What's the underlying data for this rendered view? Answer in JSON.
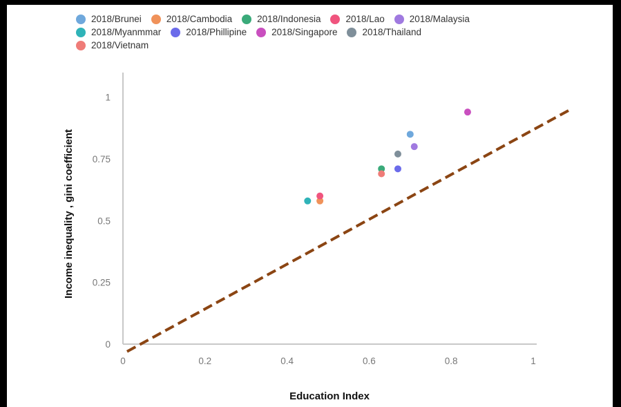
{
  "chart_data": {
    "type": "scatter",
    "title": "",
    "xlabel": "Education Index",
    "ylabel": "Income inequality , gini coefficient",
    "xlim": [
      0,
      1
    ],
    "ylim": [
      0,
      1.1
    ],
    "x_ticks": [
      0,
      0.2,
      0.4,
      0.6,
      0.8,
      1
    ],
    "x_tick_labels": [
      "0",
      "0.2",
      "0.4",
      "0.6",
      "0.8",
      "1"
    ],
    "y_ticks": [
      0,
      0.25,
      0.5,
      0.75,
      1
    ],
    "y_tick_labels": [
      "0",
      "0.25",
      "0.5",
      "0.75",
      "1"
    ],
    "grid": false,
    "legend_position": "top-left",
    "series": [
      {
        "name": "2018/Brunei",
        "color": "#6fa8dc",
        "x": 0.7,
        "y": 0.85
      },
      {
        "name": "2018/Cambodia",
        "color": "#f0925a",
        "x": 0.48,
        "y": 0.58
      },
      {
        "name": "2018/Indonesia",
        "color": "#3aaa7a",
        "x": 0.63,
        "y": 0.71
      },
      {
        "name": "2018/Lao",
        "color": "#f0547e",
        "x": 0.48,
        "y": 0.6
      },
      {
        "name": "2018/Malaysia",
        "color": "#a07ae0",
        "x": 0.71,
        "y": 0.8
      },
      {
        "name": "2018/Myanmmar",
        "color": "#2fb3b8",
        "x": 0.45,
        "y": 0.58
      },
      {
        "name": "2018/Phillipine",
        "color": "#6b6bea",
        "x": 0.67,
        "y": 0.71
      },
      {
        "name": "2018/Singapore",
        "color": "#c94fbf",
        "x": 0.84,
        "y": 0.94
      },
      {
        "name": "2018/Thailand",
        "color": "#7f8f9a",
        "x": 0.67,
        "y": 0.77
      },
      {
        "name": "2018/Vietnam",
        "color": "#ef7c78",
        "x": 0.63,
        "y": 0.69
      }
    ],
    "trend_line": {
      "style": "dashed",
      "color": "#8b4513",
      "x": [
        0.01,
        1.09
      ],
      "y": [
        -0.03,
        0.95
      ]
    }
  }
}
